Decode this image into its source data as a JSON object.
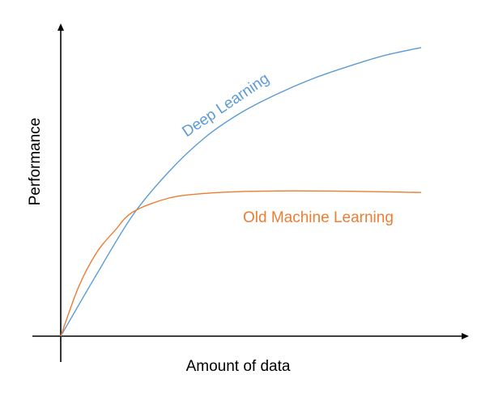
{
  "chart_data": {
    "type": "line",
    "xlabel": "Amount of data",
    "ylabel": "Performance",
    "xlim": [
      0,
      100
    ],
    "ylim": [
      0,
      100
    ],
    "grid": false,
    "legend": "inline",
    "series": [
      {
        "name": "Deep Learning",
        "color": "#5B9BD5",
        "x": [
          0,
          10,
          20,
          30,
          40,
          50,
          60,
          70,
          80,
          90,
          100
        ],
        "y": [
          0,
          20,
          39,
          53,
          64,
          72,
          78,
          83,
          87,
          90.5,
          93
        ]
      },
      {
        "name": "Old Machine Learning",
        "color": "#ED7D31",
        "x": [
          0,
          5,
          10,
          15,
          20,
          30,
          40,
          50,
          60,
          70,
          80,
          90,
          100
        ],
        "y": [
          0,
          16,
          27,
          34,
          40,
          44.5,
          46,
          46.6,
          46.8,
          46.8,
          46.7,
          46.5,
          46.3
        ]
      }
    ]
  }
}
